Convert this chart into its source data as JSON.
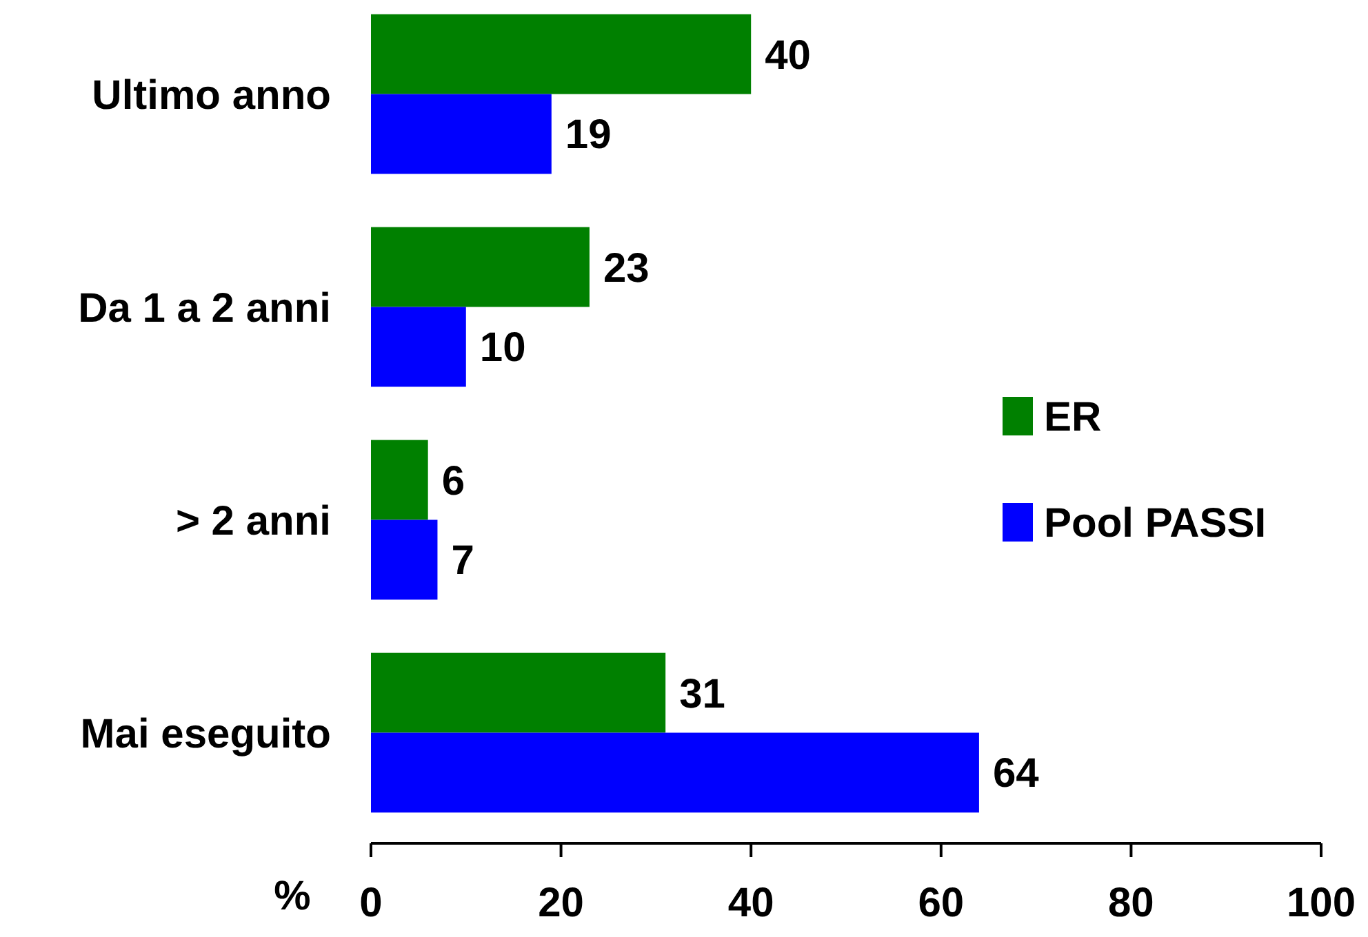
{
  "chart_data": {
    "type": "bar",
    "orientation": "horizontal",
    "xlabel": "%",
    "categories": [
      "Ultimo anno",
      "Da 1 a 2 anni",
      "> 2 anni",
      "Mai eseguito"
    ],
    "series": [
      {
        "name": "ER",
        "color": "#008000",
        "values": [
          40,
          23,
          6,
          31
        ]
      },
      {
        "name": "Pool PASSI",
        "color": "#0000ff",
        "values": [
          19,
          10,
          7,
          64
        ]
      }
    ],
    "xlim": [
      0,
      100
    ],
    "xticks": [
      0,
      20,
      40,
      60,
      80,
      100
    ],
    "data_labels": true,
    "legend": "right",
    "grid": false
  }
}
